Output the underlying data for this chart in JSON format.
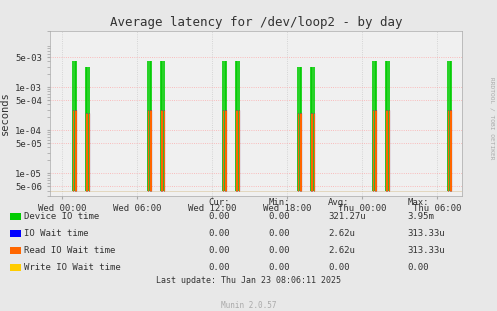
{
  "title": "Average latency for /dev/loop2 - by day",
  "ylabel": "seconds",
  "background_color": "#e8e8e8",
  "plot_bg_color": "#f0f0f0",
  "grid_color": "#ff9999",
  "grid_style": "dotted",
  "ylim_min": 3e-06,
  "ylim_max": 0.02,
  "yticks": [
    5e-06,
    1e-05,
    5e-05,
    0.0001,
    0.0005,
    0.001,
    0.005
  ],
  "ytick_labels": [
    "5e-06",
    "1e-05",
    "5e-05",
    "1e-04",
    "5e-04",
    "1e-03",
    "5e-03"
  ],
  "xtick_positions": [
    0,
    21600,
    43200,
    64800,
    86400,
    108000
  ],
  "xtick_labels": [
    "Wed 00:00",
    "Wed 06:00",
    "Wed 12:00",
    "Wed 18:00",
    "Thu 00:00",
    "Thu 06:00"
  ],
  "xmin": -3600,
  "xmax": 115200,
  "series": [
    {
      "name": "Device IO time",
      "color": "#00cc00",
      "linewidth": 1.2,
      "spike_x_centers": [
        3600,
        7200,
        25200,
        28800,
        46800,
        50400,
        68400,
        72000,
        90000,
        93600,
        111600
      ],
      "spike_heights": [
        0.004,
        0.003,
        0.004,
        0.004,
        0.004,
        0.004,
        0.003,
        0.003,
        0.004,
        0.004,
        0.004
      ],
      "base": 4e-06
    },
    {
      "name": "IO Wait time",
      "color": "#0000ff",
      "linewidth": 0.8,
      "spike_x_centers": [
        3600,
        7200,
        25200,
        28800,
        46800,
        50400,
        68400,
        72000,
        90000,
        93600,
        111600
      ],
      "spike_heights": [
        0.0003,
        0.00025,
        0.0003,
        0.0003,
        0.0003,
        0.0003,
        0.00025,
        0.00025,
        0.0003,
        0.0003,
        0.0003
      ],
      "base": 4e-06
    },
    {
      "name": "Read IO Wait time",
      "color": "#ff6600",
      "linewidth": 0.8,
      "spike_x_centers": [
        3600,
        7200,
        25200,
        28800,
        46800,
        50400,
        68400,
        72000,
        90000,
        93600,
        111600
      ],
      "spike_heights": [
        0.0003,
        0.00025,
        0.0003,
        0.0003,
        0.0003,
        0.0003,
        0.00025,
        0.00025,
        0.0003,
        0.0003,
        0.0003
      ],
      "base": 4e-06
    },
    {
      "name": "Write IO Wait time",
      "color": "#ffcc00",
      "linewidth": 0.8,
      "spike_x_centers": [],
      "spike_heights": [],
      "base": 4e-06
    }
  ],
  "legend_entries": [
    {
      "label": "Device IO time",
      "color": "#00cc00",
      "marker": "s"
    },
    {
      "label": "IO Wait time",
      "color": "#0000ff",
      "marker": "s"
    },
    {
      "label": "Read IO Wait time",
      "color": "#ff6600",
      "marker": "s"
    },
    {
      "label": "Write IO Wait time",
      "color": "#ffcc00",
      "marker": "s"
    }
  ],
  "table_headers": [
    "Cur:",
    "Min:",
    "Avg:",
    "Max:"
  ],
  "table_rows": [
    [
      "0.00",
      "0.00",
      "321.27u",
      "3.95m"
    ],
    [
      "0.00",
      "0.00",
      "2.62u",
      "313.33u"
    ],
    [
      "0.00",
      "0.00",
      "2.62u",
      "313.33u"
    ],
    [
      "0.00",
      "0.00",
      "0.00",
      "0.00"
    ]
  ],
  "last_update": "Last update: Thu Jan 23 08:06:11 2025",
  "munin_version": "Munin 2.0.57",
  "rrdtool_label": "RRDTOOL / TOBI OETIKER"
}
